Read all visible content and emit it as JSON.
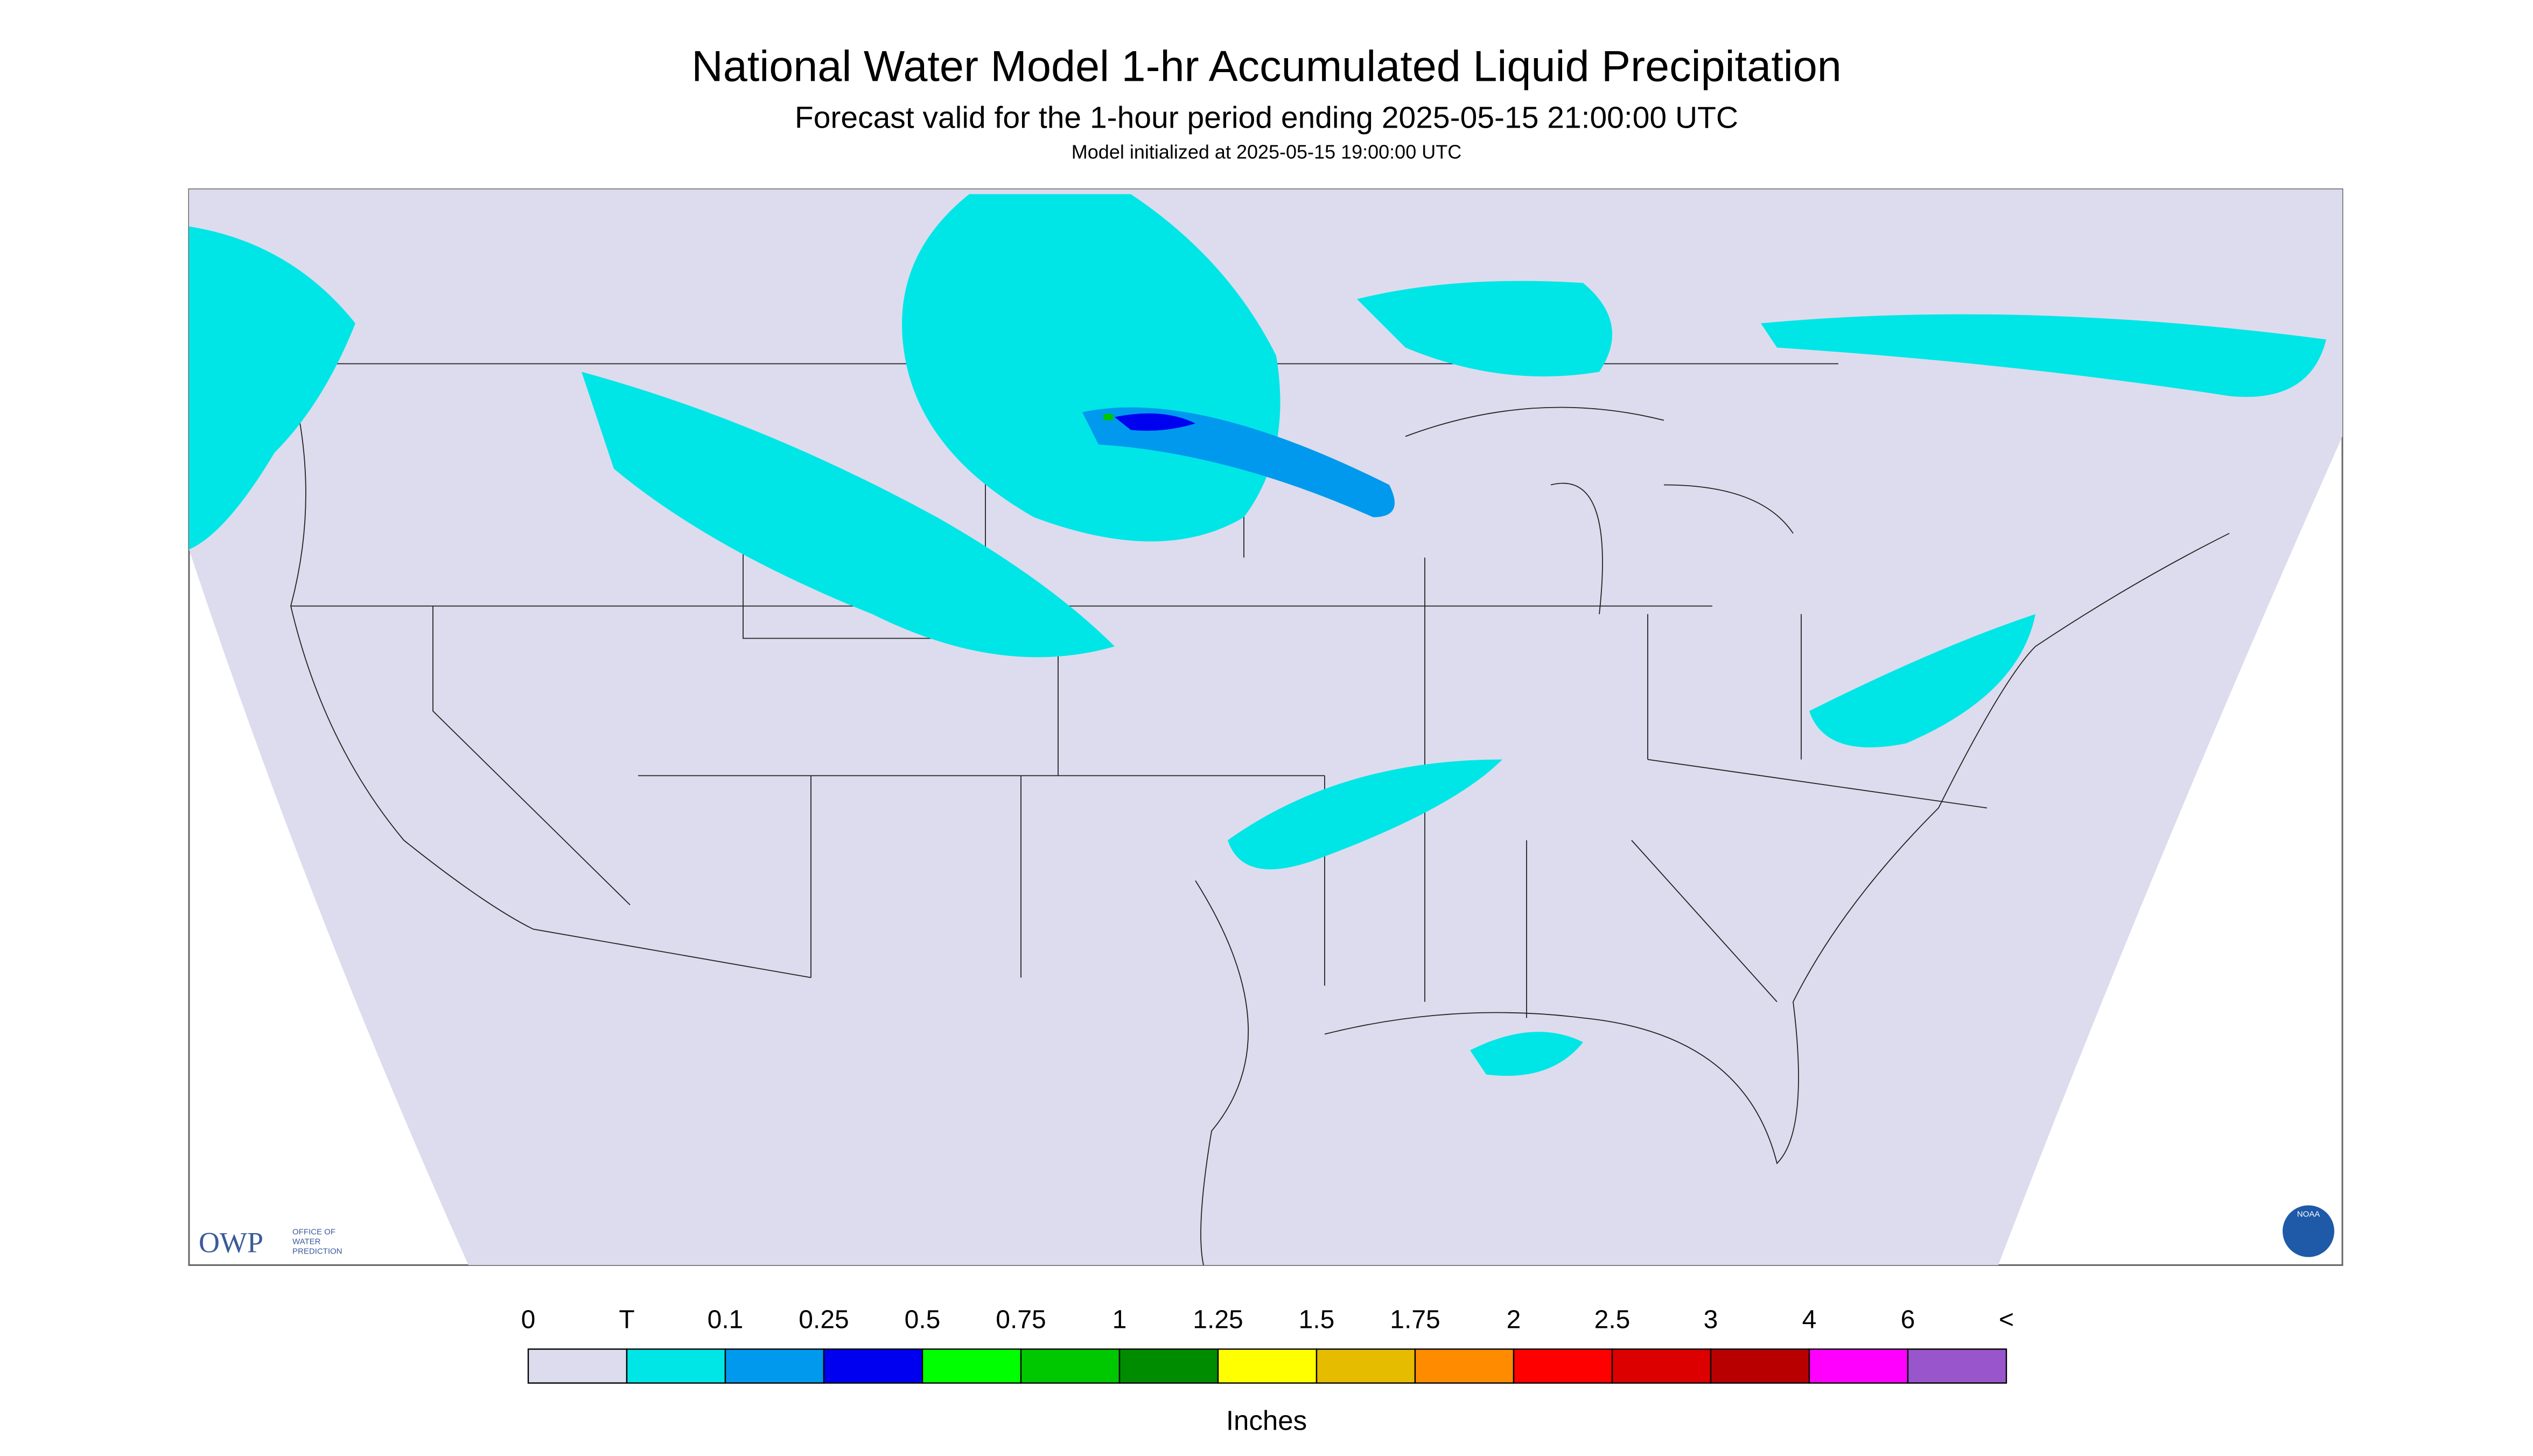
{
  "header": {
    "title": "National Water Model 1-hr Accumulated Liquid Precipitation",
    "subtitle": "Forecast valid for the 1-hour period ending 2025-05-15 21:00:00 UTC",
    "init": "Model initialized at 2025-05-15 19:00:00 UTC"
  },
  "logos": {
    "owp": "OWP",
    "owp_text": [
      "OFFICE OF",
      "WATER",
      "PREDICTION"
    ],
    "noaa": "NOAA"
  },
  "legend": {
    "labels": [
      "0",
      "T",
      "0.1",
      "0.25",
      "0.5",
      "0.75",
      "1",
      "1.25",
      "1.5",
      "1.75",
      "2",
      "2.5",
      "3",
      "4",
      "6",
      "<"
    ],
    "colors": [
      "#dcdcee",
      "#00e6e6",
      "#0099ee",
      "#0000f0",
      "#00ff00",
      "#00c800",
      "#008c00",
      "#ffff00",
      "#e6bc00",
      "#ff8c00",
      "#ff0000",
      "#dc0000",
      "#b90000",
      "#ff00ff",
      "#9955cc"
    ],
    "unit": "Inches"
  }
}
